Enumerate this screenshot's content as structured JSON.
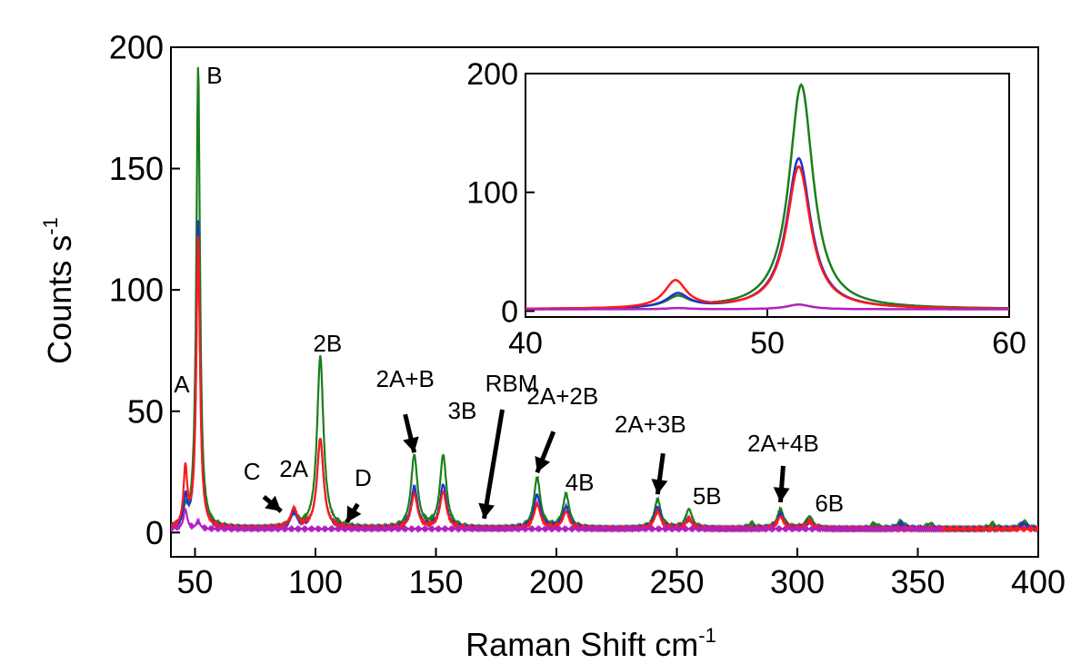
{
  "chart_data": [
    {
      "type": "line",
      "panel": "main",
      "xlabel": "Raman Shift cm",
      "xlabel_sup": "-1",
      "ylabel": "Counts s",
      "ylabel_sup": "-1",
      "xlim": [
        40,
        400
      ],
      "ylim": [
        -10,
        200
      ],
      "xticks": [
        "50",
        "100",
        "150",
        "200",
        "250",
        "300",
        "350",
        "400"
      ],
      "yticks": [
        "0",
        "50",
        "100",
        "150",
        "200"
      ],
      "colors": {
        "green": "#1a7f1a",
        "blue": "#1f33cc",
        "red": "#ff1a1a",
        "magenta": "#b020c0"
      },
      "series": [
        {
          "color": "#1a7f1a",
          "values_desc": "peaks",
          "peaks": [
            [
              46,
              6
            ],
            [
              51.3,
              191
            ],
            [
              91,
              6
            ],
            [
              102,
              71
            ],
            [
              141,
              30
            ],
            [
              153,
              30
            ],
            [
              192,
              21
            ],
            [
              204,
              14
            ],
            [
              242,
              12
            ],
            [
              255,
              8
            ],
            [
              281,
              2
            ],
            [
              293,
              8
            ],
            [
              305,
              5
            ],
            [
              332,
              2
            ],
            [
              343,
              3
            ],
            [
              355,
              2
            ],
            [
              381,
              2
            ],
            [
              394,
              3
            ]
          ],
          "end": 400
        },
        {
          "color": "#1f33cc",
          "peaks": [
            [
              46,
              12
            ],
            [
              51.3,
              127
            ],
            [
              91,
              6
            ],
            [
              102,
              37
            ],
            [
              141,
              17
            ],
            [
              153,
              18
            ],
            [
              192,
              14
            ],
            [
              204,
              9
            ],
            [
              242,
              9
            ],
            [
              255,
              4
            ],
            [
              293,
              6
            ],
            [
              305,
              3
            ],
            [
              343,
              2
            ],
            [
              394,
              2
            ]
          ],
          "end": 400
        },
        {
          "color": "#ff1a1a",
          "peaks": [
            [
              46,
              24
            ],
            [
              51.3,
              120
            ],
            [
              91,
              8
            ],
            [
              102,
              37
            ],
            [
              141,
              14
            ],
            [
              153,
              15
            ],
            [
              192,
              10
            ],
            [
              204,
              7
            ],
            [
              242,
              7
            ],
            [
              255,
              4
            ],
            [
              293,
              5
            ],
            [
              305,
              3
            ]
          ],
          "end": 400
        },
        {
          "color": "#b020c0",
          "peaks": [
            [
              46,
              8
            ],
            [
              51.3,
              3
            ]
          ],
          "end": 360
        }
      ],
      "annotations": [
        {
          "label": "A",
          "x": 46,
          "y": 24
        },
        {
          "label": "B",
          "x": 51.3,
          "y": 191
        },
        {
          "label": "C",
          "x": 88,
          "y": 5
        },
        {
          "label": "2A",
          "x": 91,
          "y": 8
        },
        {
          "label": "2B",
          "x": 102,
          "y": 71
        },
        {
          "label": "D",
          "x": 113,
          "y": 2
        },
        {
          "label": "2A+B",
          "x": 141,
          "y": 30
        },
        {
          "label": "3B",
          "x": 153,
          "y": 30
        },
        {
          "label": "RBM",
          "x": 170,
          "y": 2
        },
        {
          "label": "2A+2B",
          "x": 192,
          "y": 21
        },
        {
          "label": "4B",
          "x": 204,
          "y": 14
        },
        {
          "label": "2A+3B",
          "x": 242,
          "y": 12
        },
        {
          "label": "5B",
          "x": 255,
          "y": 8
        },
        {
          "label": "2A+4B",
          "x": 293,
          "y": 8
        },
        {
          "label": "6B",
          "x": 305,
          "y": 5
        }
      ]
    },
    {
      "type": "line",
      "panel": "inset",
      "xlim": [
        40,
        60
      ],
      "ylim": [
        -5,
        200
      ],
      "xticks": [
        "40",
        "50",
        "60"
      ],
      "yticks": [
        "0",
        "100",
        "200"
      ],
      "series": [
        {
          "color": "#1a7f1a",
          "peaks": [
            [
              46.3,
              9
            ],
            [
              51.4,
              189
            ]
          ]
        },
        {
          "color": "#1f33cc",
          "peaks": [
            [
              46.3,
              12
            ],
            [
              51.3,
              127
            ]
          ]
        },
        {
          "color": "#ff1a1a",
          "peaks": [
            [
              46.2,
              23
            ],
            [
              51.3,
              120
            ]
          ]
        },
        {
          "color": "#b020c0",
          "peaks": [
            [
              46.3,
              1
            ],
            [
              51.3,
              4
            ]
          ]
        }
      ]
    }
  ]
}
